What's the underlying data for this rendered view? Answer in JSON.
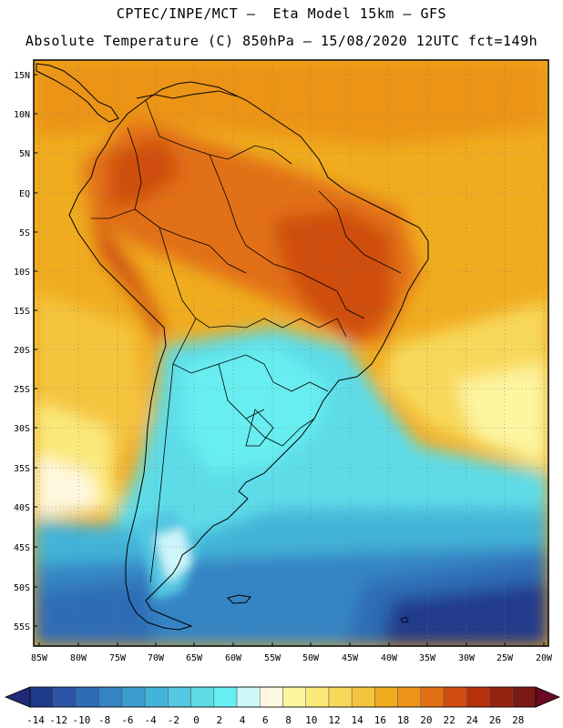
{
  "header": {
    "title_line1": "CPTEC/INPE/MCT –  Eta Model 15km – GFS",
    "title_line2": "Absolute Temperature (C) 850hPa – 15/08/2020 12UTC fct=149h"
  },
  "axes": {
    "lat_labels": [
      "15N",
      "10N",
      "5N",
      "EQ",
      "5S",
      "10S",
      "15S",
      "20S",
      "25S",
      "30S",
      "35S",
      "40S",
      "45S",
      "50S",
      "55S"
    ],
    "lon_labels": [
      "85W",
      "80W",
      "75W",
      "70W",
      "65W",
      "60W",
      "55W",
      "50W",
      "45W",
      "40W",
      "35W",
      "30W",
      "25W",
      "20W"
    ]
  },
  "colorbar": {
    "labels": [
      "-14",
      "-12",
      "-10",
      "-8",
      "-6",
      "-4",
      "-2",
      "0",
      "2",
      "4",
      "6",
      "8",
      "10",
      "12",
      "14",
      "16",
      "18",
      "20",
      "22",
      "24",
      "26",
      "28"
    ],
    "colors": [
      "#203a8a",
      "#2a55a6",
      "#2f6cb6",
      "#3584c4",
      "#3b9ccf",
      "#43b4d8",
      "#52c8e2",
      "#5ddce8",
      "#67eef0",
      "#cdf6fa",
      "#fff8e0",
      "#fdf5a0",
      "#fbe97a",
      "#f8d85a",
      "#f4c43e",
      "#f0ac1f",
      "#ec9419",
      "#e27014",
      "#cf4d10",
      "#b6320d",
      "#962210",
      "#7a1a14"
    ],
    "left_arrow_color": "#1f2a78",
    "right_arrow_color": "#6a0a22"
  }
}
